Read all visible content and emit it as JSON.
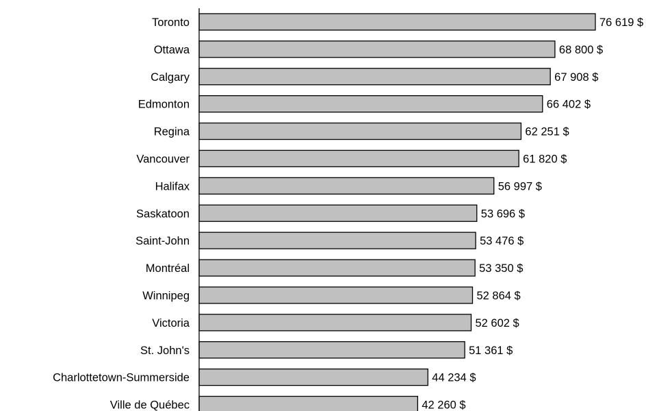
{
  "chart_data": {
    "type": "bar",
    "orientation": "horizontal",
    "categories": [
      "Toronto",
      "Ottawa",
      "Calgary",
      "Edmonton",
      "Regina",
      "Vancouver",
      "Halifax",
      "Saskatoon",
      "Saint-John",
      "Montréal",
      "Winnipeg",
      "Victoria",
      "St. John's",
      "Charlottetown-Summerside",
      "Ville de Québec"
    ],
    "values": [
      76619,
      68800,
      67908,
      66402,
      62251,
      61820,
      56997,
      53696,
      53476,
      53350,
      52864,
      52602,
      51361,
      44234,
      42260
    ],
    "value_labels": [
      "76 619 $",
      "68 800 $",
      "67 908 $",
      "66 402 $",
      "62 251 $",
      "61 820 $",
      "56 997 $",
      "53 696 $",
      "53 476 $",
      "53 350 $",
      "52 864 $",
      "52 602 $",
      "51 361 $",
      "44 234 $",
      "42 260 $"
    ],
    "xlim": [
      0,
      76619
    ],
    "grid": false,
    "colors": {
      "bar": "#c0c0c0",
      "outline": "#000000"
    }
  }
}
